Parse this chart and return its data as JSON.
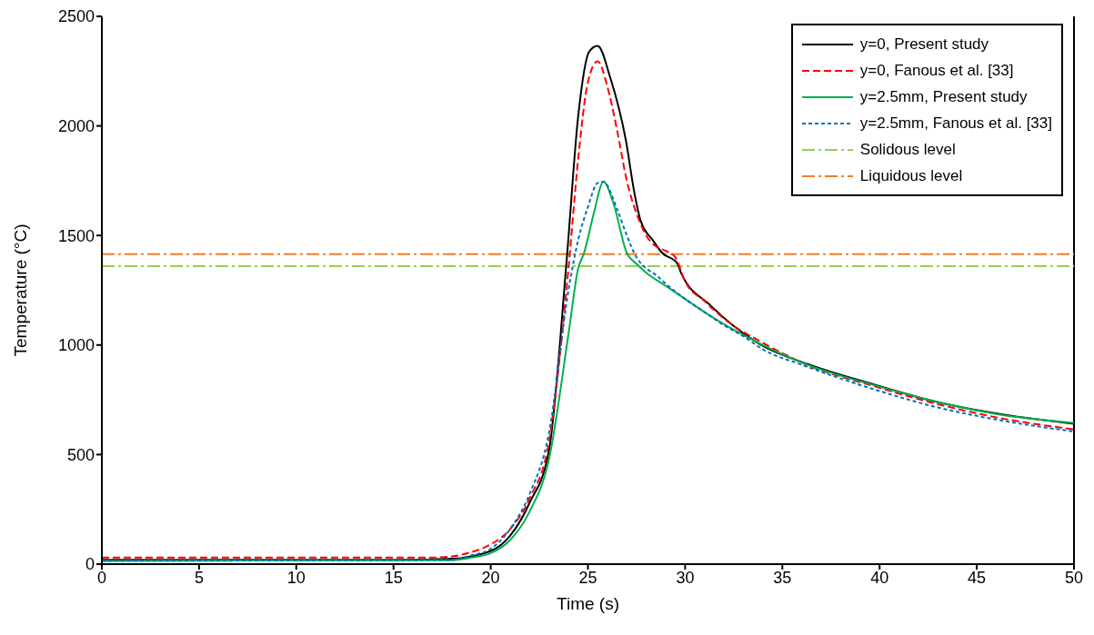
{
  "chart_data": {
    "type": "line",
    "xlabel": "Time (s)",
    "ylabel": "Temperature (°C)",
    "xlim": [
      0,
      50
    ],
    "ylim": [
      0,
      2500
    ],
    "xticks": [
      0,
      5,
      10,
      15,
      20,
      25,
      30,
      35,
      40,
      45,
      50
    ],
    "yticks": [
      0,
      500,
      1000,
      1500,
      2000,
      2500
    ],
    "grid": false,
    "legend": "top right",
    "marker": "none",
    "series": [
      {
        "name": "y=0, Present study",
        "color": "#000000",
        "line_style": "solid",
        "x": [
          0,
          15,
          18,
          20,
          21,
          22,
          23,
          23.9,
          24.5,
          25.07,
          25.5,
          26.15,
          26.95,
          27.4,
          27.7,
          28.35,
          28.8,
          29.6,
          29.8,
          31.3,
          33.8,
          36.3,
          39.7,
          43,
          46.4,
          50
        ],
        "values": [
          20,
          20,
          25,
          60,
          130,
          280,
          520,
          1380,
          2045,
          2340,
          2365,
          2220,
          1935,
          1690,
          1570,
          1477,
          1422,
          1372,
          1327,
          1181,
          1006,
          913,
          820,
          739,
          682,
          641
        ]
      },
      {
        "name": "y=0, Fanous et al. [33]",
        "color": "#ff0000",
        "line_style": "dashed",
        "x": [
          0,
          17,
          18,
          19,
          20,
          21,
          22,
          23,
          24,
          24.5,
          25,
          25.5,
          26,
          26.5,
          27,
          27.5,
          28,
          28.5,
          29,
          29.5,
          30,
          31,
          32,
          34,
          36,
          40,
          43,
          46,
          50
        ],
        "values": [
          30,
          30,
          35,
          55,
          90,
          160,
          300,
          560,
          1350,
          1850,
          2200,
          2295,
          2180,
          1980,
          1750,
          1600,
          1500,
          1450,
          1430,
          1400,
          1290,
          1200,
          1120,
          1010,
          920,
          805,
          730,
          670,
          615
        ]
      },
      {
        "name": "y=2.5mm, Present study",
        "color": "#00b050",
        "line_style": "solid",
        "x": [
          0,
          18,
          19,
          20,
          21,
          22,
          23,
          24,
          24.5,
          24.8,
          25.3,
          25.8,
          26.3,
          27,
          27.5,
          28,
          29,
          30,
          31,
          32,
          33,
          34,
          36,
          40,
          43,
          46,
          50
        ],
        "values": [
          15,
          18,
          30,
          50,
          110,
          240,
          480,
          1050,
          1350,
          1420,
          1600,
          1745,
          1650,
          1420,
          1370,
          1330,
          1270,
          1210,
          1150,
          1095,
          1045,
          1000,
          920,
          810,
          740,
          685,
          645
        ]
      },
      {
        "name": "y=2.5mm, Fanous et al. [33]",
        "color": "#0070c0",
        "line_style": "dotted",
        "x": [
          0,
          18,
          19,
          20,
          21,
          22,
          23,
          24,
          24.5,
          25,
          25.5,
          25.8,
          26.5,
          27,
          27.5,
          28,
          28.5,
          29,
          30,
          31,
          32,
          33,
          34,
          36,
          40,
          43,
          46,
          50
        ],
        "values": [
          15,
          20,
          40,
          70,
          160,
          320,
          600,
          1250,
          1480,
          1630,
          1740,
          1745,
          1620,
          1500,
          1400,
          1350,
          1320,
          1280,
          1210,
          1150,
          1090,
          1040,
          980,
          910,
          790,
          715,
          660,
          605
        ]
      }
    ],
    "ref_lines": [
      {
        "axis": "y",
        "value": 1360,
        "label": "Solidous level",
        "color": "#92d050",
        "line_style": "dashed"
      },
      {
        "axis": "y",
        "value": 1415,
        "label": "Liquidous level",
        "color": "#ed7d31",
        "line_style": "dashed"
      }
    ]
  }
}
